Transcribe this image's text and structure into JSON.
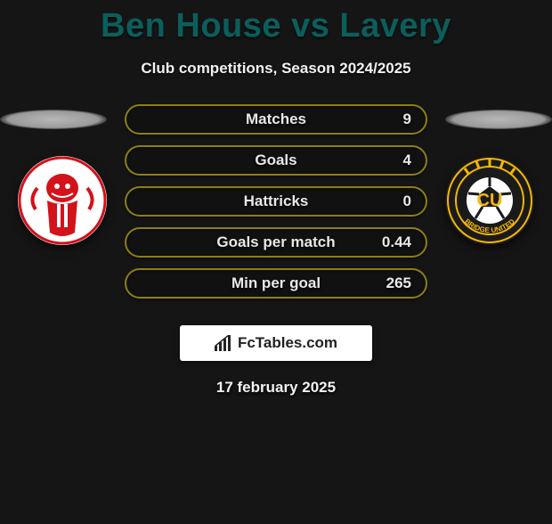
{
  "header": {
    "title": "Ben House vs Lavery",
    "subtitle": "Club competitions, Season 2024/2025",
    "title_color": "#0c5e5b",
    "subtitle_color": "#f2f2f2"
  },
  "background_color": "#151515",
  "clubs": {
    "left": {
      "name": "Lincoln City",
      "badge_bg": "#ffffff",
      "badge_accent": "#d3121a",
      "badge_ring": "#d3121a"
    },
    "right": {
      "name": "Cambridge United",
      "badge_bg": "#1a1a1a",
      "badge_accent": "#f6b800",
      "badge_ring": "#f6b800",
      "badge_letters": "CU"
    }
  },
  "stats": {
    "pill_border_color": "#8d7f12",
    "label_color": "#e8e8e8",
    "value_color": "#e8e8e8",
    "rows": [
      {
        "label": "Matches",
        "value": "9"
      },
      {
        "label": "Goals",
        "value": "4"
      },
      {
        "label": "Hattricks",
        "value": "0"
      },
      {
        "label": "Goals per match",
        "value": "0.44"
      },
      {
        "label": "Min per goal",
        "value": "265"
      }
    ]
  },
  "brand": {
    "icon_name": "bar-chart-icon",
    "text": "FcTables.com",
    "box_bg": "#ffffff",
    "text_color": "#222222",
    "icon_color": "#222222"
  },
  "footer": {
    "date": "17 february 2025",
    "date_color": "#f2f2f2"
  }
}
